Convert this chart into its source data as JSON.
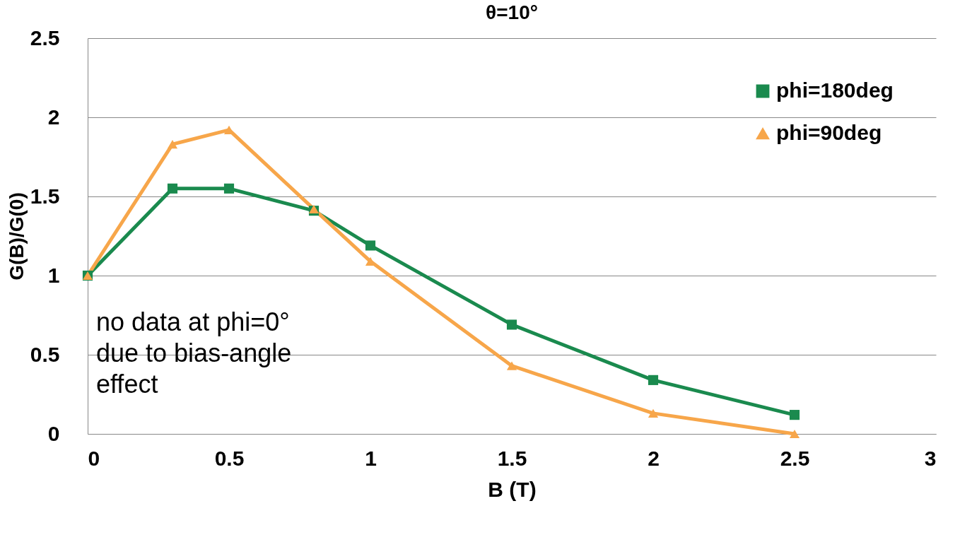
{
  "chart_data": {
    "type": "line",
    "title": "θ=10°",
    "xlabel": "B (T)",
    "ylabel": "G(B)/G(0)",
    "x": [
      0,
      0.3,
      0.5,
      0.8,
      1,
      1.5,
      2,
      2.5
    ],
    "series": [
      {
        "name": "phi=180deg",
        "color": "#1a8a4e",
        "marker": "square",
        "values": [
          1,
          1.55,
          1.55,
          1.41,
          1.19,
          0.69,
          0.34,
          0.12
        ]
      },
      {
        "name": "phi=90deg",
        "color": "#f7a64a",
        "marker": "triangle",
        "values": [
          1,
          1.83,
          1.92,
          1.42,
          1.09,
          0.43,
          0.13,
          0.0
        ]
      }
    ],
    "xlim": [
      0,
      3
    ],
    "xticks": [
      0,
      0.5,
      1,
      1.5,
      2,
      2.5,
      3
    ],
    "ylim": [
      0,
      2.5
    ],
    "yticks": [
      0,
      0.5,
      1,
      1.5,
      2,
      2.5
    ],
    "grid": "y",
    "legend": "top right",
    "line_style": "solid",
    "annotations": [
      "no data at phi=0° due to bias-angle effect"
    ]
  }
}
